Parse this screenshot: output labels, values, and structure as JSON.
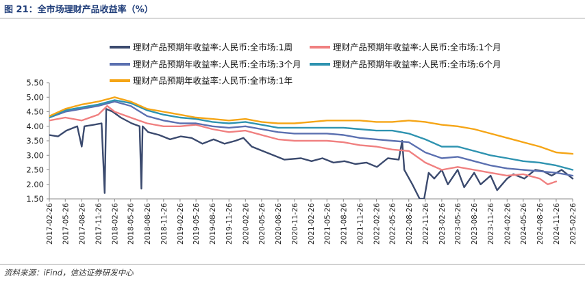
{
  "figure": {
    "title": "图 21：全市场理财产品收益率（%）",
    "source": "资料来源：iFind，信达证券研发中心"
  },
  "chart_data": {
    "type": "line",
    "title": "",
    "xlabel": "",
    "ylabel": "",
    "ylim": [
      1.5,
      5.5
    ],
    "yticks": [
      "5.50",
      "5.00",
      "4.50",
      "4.00",
      "3.50",
      "3.00",
      "2.50",
      "2.00",
      "1.50"
    ],
    "xticks": [
      "2017-02-26",
      "2017-05-26",
      "2017-08-26",
      "2017-11-26",
      "2018-02-26",
      "2018-05-26",
      "2018-08-26",
      "2018-11-26",
      "2019-02-26",
      "2019-05-26",
      "2019-08-26",
      "2019-11-26",
      "2020-02-26",
      "2020-05-26",
      "2020-08-26",
      "2020-11-26",
      "2021-02-26",
      "2021-05-26",
      "2021-08-26",
      "2021-11-26",
      "2022-02-26",
      "2022-05-26",
      "2022-08-26",
      "2022-11-26",
      "2023-02-26",
      "2023-05-26",
      "2023-08-26",
      "2023-11-26",
      "2024-02-26",
      "2024-05-26",
      "2024-08-26",
      "2024-11-26",
      "2025-02-26"
    ],
    "grid": false,
    "legend_position": "top",
    "series": [
      {
        "name": "理财产品预期年收益率:人民币:全市场:1周",
        "color": "#3b4a6e",
        "points": [
          [
            "2017-02-26",
            3.7
          ],
          [
            "2017-04-15",
            3.65
          ],
          [
            "2017-06-01",
            3.85
          ],
          [
            "2017-08-01",
            4.0
          ],
          [
            "2017-08-26",
            3.3
          ],
          [
            "2017-09-10",
            4.0
          ],
          [
            "2017-11-01",
            4.05
          ],
          [
            "2017-12-15",
            4.1
          ],
          [
            "2018-01-01",
            1.7
          ],
          [
            "2018-01-10",
            4.6
          ],
          [
            "2018-02-15",
            4.5
          ],
          [
            "2018-04-01",
            4.3
          ],
          [
            "2018-06-01",
            4.1
          ],
          [
            "2018-07-15",
            4.0
          ],
          [
            "2018-07-25",
            1.85
          ],
          [
            "2018-08-01",
            4.0
          ],
          [
            "2018-09-01",
            3.8
          ],
          [
            "2018-11-01",
            3.7
          ],
          [
            "2019-01-01",
            3.55
          ],
          [
            "2019-03-01",
            3.65
          ],
          [
            "2019-05-01",
            3.6
          ],
          [
            "2019-07-01",
            3.4
          ],
          [
            "2019-09-01",
            3.55
          ],
          [
            "2019-11-01",
            3.4
          ],
          [
            "2020-01-01",
            3.5
          ],
          [
            "2020-02-15",
            3.6
          ],
          [
            "2020-04-01",
            3.3
          ],
          [
            "2020-06-01",
            3.15
          ],
          [
            "2020-08-01",
            3.0
          ],
          [
            "2020-10-01",
            2.85
          ],
          [
            "2021-01-01",
            2.9
          ],
          [
            "2021-03-01",
            2.8
          ],
          [
            "2021-05-01",
            2.9
          ],
          [
            "2021-07-01",
            2.75
          ],
          [
            "2021-09-01",
            2.8
          ],
          [
            "2021-11-01",
            2.7
          ],
          [
            "2022-01-01",
            2.75
          ],
          [
            "2022-03-01",
            2.6
          ],
          [
            "2022-05-01",
            2.9
          ],
          [
            "2022-07-01",
            2.85
          ],
          [
            "2022-07-20",
            3.5
          ],
          [
            "2022-08-01",
            2.5
          ],
          [
            "2022-09-15",
            2.0
          ],
          [
            "2022-10-26",
            1.5
          ],
          [
            "2022-11-20",
            1.5
          ],
          [
            "2022-12-15",
            2.4
          ],
          [
            "2023-01-15",
            2.2
          ],
          [
            "2023-02-26",
            2.5
          ],
          [
            "2023-04-01",
            2.0
          ],
          [
            "2023-05-26",
            2.5
          ],
          [
            "2023-07-01",
            1.9
          ],
          [
            "2023-08-26",
            2.4
          ],
          [
            "2023-10-01",
            2.0
          ],
          [
            "2023-11-26",
            2.3
          ],
          [
            "2024-01-01",
            1.8
          ],
          [
            "2024-02-26",
            2.2
          ],
          [
            "2024-04-01",
            2.35
          ],
          [
            "2024-06-01",
            2.2
          ],
          [
            "2024-08-01",
            2.5
          ],
          [
            "2024-09-15",
            2.45
          ],
          [
            "2024-11-01",
            2.3
          ],
          [
            "2024-12-26",
            2.5
          ],
          [
            "2025-02-26",
            2.2
          ]
        ]
      },
      {
        "name": "理财产品预期年收益率:人民币:全市场:1个月",
        "color": "#f08080",
        "points": [
          [
            "2017-02-26",
            4.2
          ],
          [
            "2017-05-26",
            4.3
          ],
          [
            "2017-08-26",
            4.2
          ],
          [
            "2017-11-26",
            4.4
          ],
          [
            "2018-01-15",
            4.7
          ],
          [
            "2018-02-26",
            4.5
          ],
          [
            "2018-05-26",
            4.3
          ],
          [
            "2018-08-26",
            4.1
          ],
          [
            "2018-11-26",
            4.0
          ],
          [
            "2019-02-26",
            4.0
          ],
          [
            "2019-05-26",
            4.05
          ],
          [
            "2019-08-26",
            3.9
          ],
          [
            "2019-11-26",
            3.8
          ],
          [
            "2020-02-26",
            3.85
          ],
          [
            "2020-05-26",
            3.7
          ],
          [
            "2020-08-26",
            3.55
          ],
          [
            "2020-11-26",
            3.5
          ],
          [
            "2021-02-26",
            3.5
          ],
          [
            "2021-05-26",
            3.5
          ],
          [
            "2021-08-26",
            3.45
          ],
          [
            "2021-11-26",
            3.35
          ],
          [
            "2022-02-26",
            3.3
          ],
          [
            "2022-05-26",
            3.2
          ],
          [
            "2022-08-26",
            3.15
          ],
          [
            "2022-11-26",
            2.75
          ],
          [
            "2023-02-26",
            2.5
          ],
          [
            "2023-05-26",
            2.6
          ],
          [
            "2023-08-26",
            2.5
          ],
          [
            "2023-11-26",
            2.4
          ],
          [
            "2024-02-26",
            2.3
          ],
          [
            "2024-05-26",
            2.35
          ],
          [
            "2024-08-26",
            2.2
          ],
          [
            "2024-10-10",
            2.0
          ],
          [
            "2024-11-26",
            2.1
          ]
        ]
      },
      {
        "name": "理财产品预期年收益率:人民币:全市场:3个月",
        "color": "#5b70b0",
        "points": [
          [
            "2017-02-26",
            4.3
          ],
          [
            "2017-05-26",
            4.5
          ],
          [
            "2017-08-26",
            4.6
          ],
          [
            "2017-11-26",
            4.7
          ],
          [
            "2018-02-26",
            4.85
          ],
          [
            "2018-05-26",
            4.7
          ],
          [
            "2018-08-26",
            4.35
          ],
          [
            "2018-11-26",
            4.2
          ],
          [
            "2019-02-26",
            4.1
          ],
          [
            "2019-05-26",
            4.1
          ],
          [
            "2019-08-26",
            4.0
          ],
          [
            "2019-11-26",
            3.95
          ],
          [
            "2020-02-26",
            4.0
          ],
          [
            "2020-05-26",
            3.9
          ],
          [
            "2020-08-26",
            3.8
          ],
          [
            "2020-11-26",
            3.75
          ],
          [
            "2021-02-26",
            3.75
          ],
          [
            "2021-05-26",
            3.75
          ],
          [
            "2021-08-26",
            3.7
          ],
          [
            "2021-11-26",
            3.6
          ],
          [
            "2022-02-26",
            3.55
          ],
          [
            "2022-05-26",
            3.5
          ],
          [
            "2022-08-26",
            3.45
          ],
          [
            "2022-11-26",
            3.1
          ],
          [
            "2023-02-26",
            2.9
          ],
          [
            "2023-05-26",
            2.95
          ],
          [
            "2023-08-26",
            2.8
          ],
          [
            "2023-11-26",
            2.65
          ],
          [
            "2024-02-26",
            2.55
          ],
          [
            "2024-05-26",
            2.5
          ],
          [
            "2024-08-26",
            2.45
          ],
          [
            "2024-11-26",
            2.4
          ],
          [
            "2025-02-26",
            2.3
          ]
        ]
      },
      {
        "name": "理财产品预期年收益率:人民币:全市场:6个月",
        "color": "#2e93b0",
        "points": [
          [
            "2017-02-26",
            4.3
          ],
          [
            "2017-05-26",
            4.55
          ],
          [
            "2017-08-26",
            4.65
          ],
          [
            "2017-11-26",
            4.75
          ],
          [
            "2018-02-26",
            4.9
          ],
          [
            "2018-05-26",
            4.8
          ],
          [
            "2018-08-26",
            4.55
          ],
          [
            "2018-11-26",
            4.4
          ],
          [
            "2019-02-26",
            4.3
          ],
          [
            "2019-05-26",
            4.25
          ],
          [
            "2019-08-26",
            4.15
          ],
          [
            "2019-11-26",
            4.1
          ],
          [
            "2020-02-26",
            4.15
          ],
          [
            "2020-05-26",
            4.05
          ],
          [
            "2020-08-26",
            3.95
          ],
          [
            "2020-11-26",
            3.95
          ],
          [
            "2021-02-26",
            3.95
          ],
          [
            "2021-05-26",
            3.95
          ],
          [
            "2021-08-26",
            3.95
          ],
          [
            "2021-11-26",
            3.9
          ],
          [
            "2022-02-26",
            3.85
          ],
          [
            "2022-05-26",
            3.85
          ],
          [
            "2022-08-26",
            3.75
          ],
          [
            "2022-11-26",
            3.55
          ],
          [
            "2023-02-26",
            3.3
          ],
          [
            "2023-05-26",
            3.3
          ],
          [
            "2023-08-26",
            3.15
          ],
          [
            "2023-11-26",
            3.0
          ],
          [
            "2024-02-26",
            2.9
          ],
          [
            "2024-05-26",
            2.8
          ],
          [
            "2024-08-26",
            2.75
          ],
          [
            "2024-11-26",
            2.65
          ],
          [
            "2025-02-26",
            2.5
          ]
        ]
      },
      {
        "name": "理财产品预期年收益率:人民币:全市场:1年",
        "color": "#f5a516",
        "points": [
          [
            "2017-02-26",
            4.35
          ],
          [
            "2017-05-26",
            4.6
          ],
          [
            "2017-08-26",
            4.75
          ],
          [
            "2017-11-26",
            4.85
          ],
          [
            "2018-02-26",
            5.0
          ],
          [
            "2018-05-26",
            4.85
          ],
          [
            "2018-08-26",
            4.6
          ],
          [
            "2018-11-26",
            4.5
          ],
          [
            "2019-02-26",
            4.4
          ],
          [
            "2019-05-26",
            4.3
          ],
          [
            "2019-08-26",
            4.25
          ],
          [
            "2019-11-26",
            4.2
          ],
          [
            "2020-02-26",
            4.25
          ],
          [
            "2020-05-26",
            4.15
          ],
          [
            "2020-08-26",
            4.1
          ],
          [
            "2020-11-26",
            4.1
          ],
          [
            "2021-02-26",
            4.15
          ],
          [
            "2021-05-26",
            4.2
          ],
          [
            "2021-08-26",
            4.2
          ],
          [
            "2021-11-26",
            4.2
          ],
          [
            "2022-02-26",
            4.15
          ],
          [
            "2022-05-26",
            4.15
          ],
          [
            "2022-08-26",
            4.2
          ],
          [
            "2022-11-26",
            4.15
          ],
          [
            "2023-02-26",
            4.05
          ],
          [
            "2023-05-26",
            4.0
          ],
          [
            "2023-08-26",
            3.9
          ],
          [
            "2023-11-26",
            3.75
          ],
          [
            "2024-02-26",
            3.6
          ],
          [
            "2024-05-26",
            3.45
          ],
          [
            "2024-08-26",
            3.3
          ],
          [
            "2024-11-26",
            3.1
          ],
          [
            "2025-02-26",
            3.05
          ]
        ]
      }
    ]
  }
}
